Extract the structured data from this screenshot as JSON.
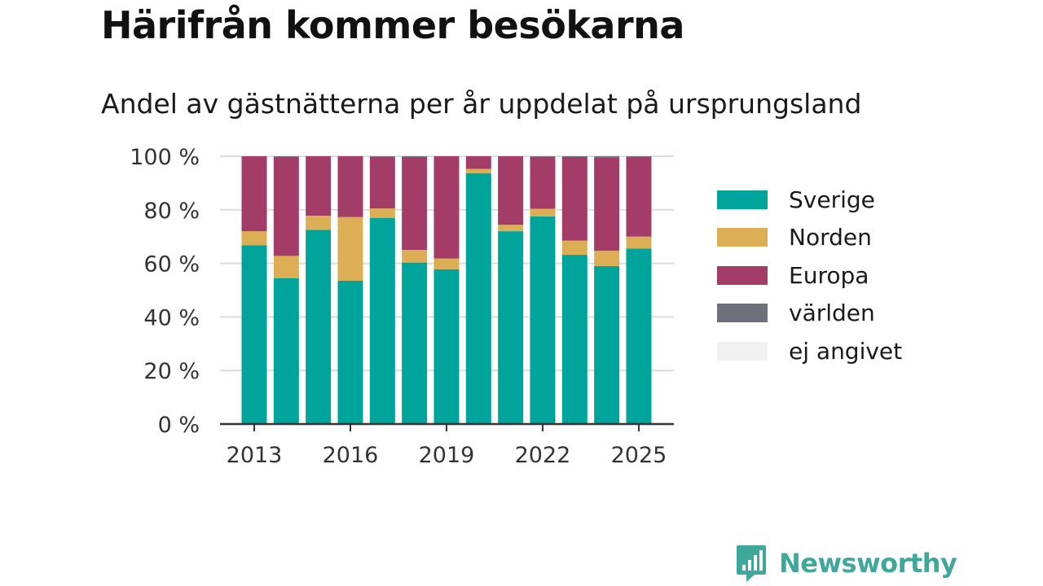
{
  "title": "Härifrån kommer besökarna",
  "subtitle": "Andel av gästnätterna per år uppdelat på ursprungsland",
  "brand": {
    "name": "Newsworthy",
    "icon": "newsworthy-logo-icon"
  },
  "colors": {
    "Sverige": "#00a49a",
    "Norden": "#dcaf56",
    "Europa": "#a33d67",
    "världen": "#6f7079",
    "ej angivet": "#f1f1f1"
  },
  "chart_data": {
    "type": "bar",
    "stacked": true,
    "categories": [
      2013,
      2014,
      2015,
      2016,
      2017,
      2018,
      2019,
      2020,
      2021,
      2022,
      2023,
      2024,
      2025
    ],
    "series": [
      {
        "name": "Sverige",
        "values": [
          66.8,
          54.5,
          72.5,
          53.5,
          77.0,
          60.3,
          57.8,
          93.7,
          72.0,
          77.5,
          63.2,
          59.0,
          65.5
        ]
      },
      {
        "name": "Norden",
        "values": [
          5.2,
          8.3,
          5.3,
          23.8,
          3.5,
          4.7,
          4.0,
          1.6,
          2.4,
          2.9,
          5.3,
          5.7,
          4.5
        ]
      },
      {
        "name": "Europa",
        "values": [
          28.0,
          37.0,
          22.2,
          22.7,
          19.3,
          34.7,
          38.2,
          4.7,
          25.6,
          19.4,
          31.2,
          34.7,
          29.8
        ]
      },
      {
        "name": "världen",
        "values": [
          0.0,
          0.2,
          0.0,
          0.0,
          0.2,
          0.3,
          0.0,
          0.0,
          0.0,
          0.2,
          0.3,
          0.6,
          0.2
        ]
      },
      {
        "name": "ej angivet",
        "values": [
          0,
          0,
          0,
          0,
          0,
          0,
          0,
          0,
          0,
          0,
          0,
          0,
          0
        ]
      }
    ],
    "ylim": [
      0,
      100
    ],
    "yticks": [
      0,
      20,
      40,
      60,
      80,
      100
    ],
    "ytick_labels": [
      "0 %",
      "20 %",
      "40 %",
      "60 %",
      "80 %",
      "100 %"
    ],
    "xtick_labels": [
      "2013",
      "2016",
      "2019",
      "2022",
      "2025"
    ],
    "xlabel": "",
    "ylabel": "",
    "grid": "horizontal",
    "legend_position": "right"
  }
}
